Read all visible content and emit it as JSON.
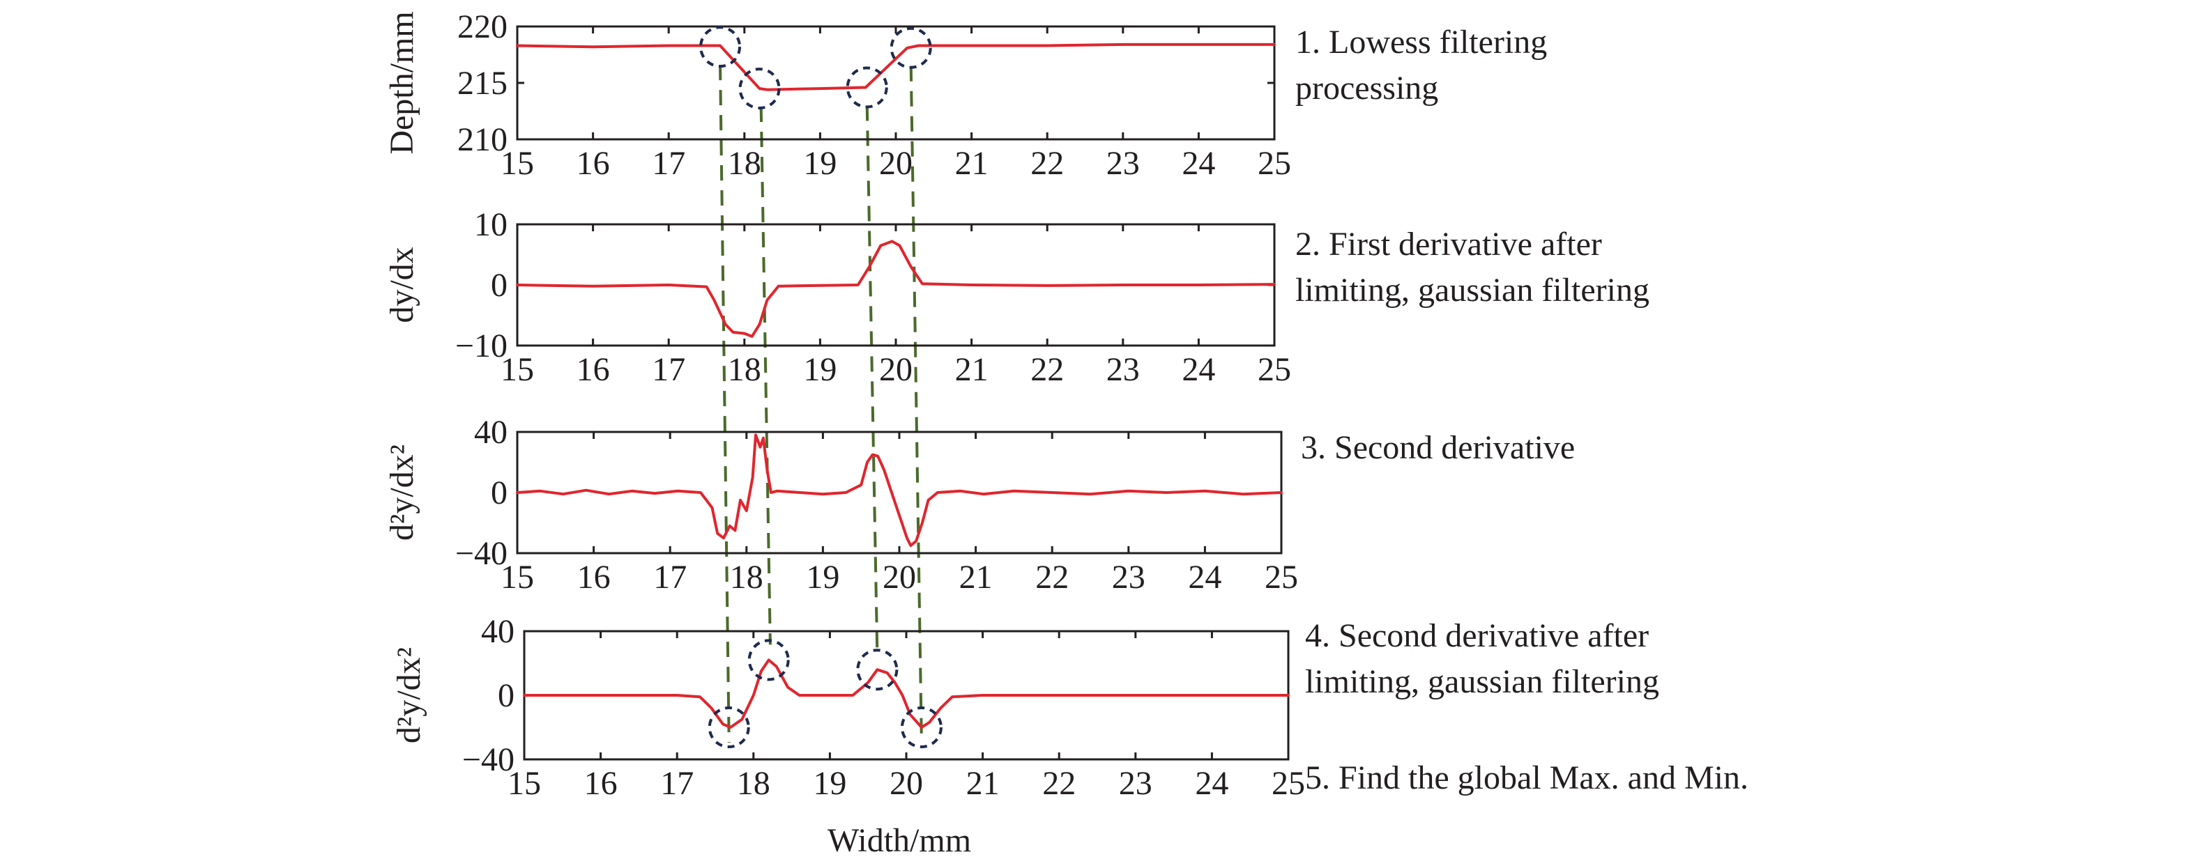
{
  "figure": {
    "xlabel": "Width/mm",
    "guide_x": [
      17.68,
      18.22,
      19.62,
      20.2
    ],
    "line_color": "#e0262e",
    "circle_color": "#1f2a4d",
    "guide_color": "#4a6a2a"
  },
  "chart_data": [
    {
      "type": "line",
      "panel": 1,
      "ylabel": "Depth/mm",
      "xlim": [
        15,
        25
      ],
      "ylim": [
        210,
        220
      ],
      "xticks": [
        "15",
        "16",
        "17",
        "18",
        "19",
        "20",
        "21",
        "22",
        "23",
        "24",
        "25"
      ],
      "yticks": [
        "210",
        "215",
        "220"
      ],
      "annotation": [
        "1. Lowess filtering",
        "processing"
      ],
      "x": [
        15,
        16,
        17,
        17.68,
        18.2,
        18.3,
        19,
        19.6,
        20.15,
        20.3,
        21,
        22,
        23,
        24,
        25
      ],
      "y": [
        218.3,
        218.2,
        218.3,
        218.3,
        214.5,
        214.4,
        214.5,
        214.6,
        218.1,
        218.3,
        218.3,
        218.3,
        218.4,
        218.4,
        218.4
      ],
      "circles": [
        [
          17.68,
          218.2
        ],
        [
          18.2,
          214.5
        ],
        [
          19.62,
          214.6
        ],
        [
          20.2,
          218.1
        ]
      ]
    },
    {
      "type": "line",
      "panel": 2,
      "ylabel": "dy/dx",
      "xlim": [
        15,
        25
      ],
      "ylim": [
        -10,
        10
      ],
      "xticks": [
        "15",
        "16",
        "17",
        "18",
        "19",
        "20",
        "21",
        "22",
        "23",
        "24",
        "25"
      ],
      "yticks": [
        "−10",
        "0",
        "10"
      ],
      "annotation": [
        "2. First derivative after",
        "limiting, gaussian filtering"
      ],
      "x": [
        15,
        16,
        17,
        17.5,
        17.6,
        17.75,
        17.85,
        18.0,
        18.1,
        18.2,
        18.3,
        18.45,
        19.5,
        19.65,
        19.8,
        19.95,
        20.05,
        20.2,
        20.35,
        21,
        22,
        23,
        24,
        25
      ],
      "y": [
        0,
        -0.2,
        0,
        -0.3,
        -2.5,
        -6.5,
        -7.8,
        -8.0,
        -8.5,
        -6.5,
        -2.5,
        -0.2,
        0,
        3.0,
        6.5,
        7.2,
        6.5,
        3.0,
        0.2,
        0,
        -0.1,
        0,
        0,
        0.1
      ],
      "circles": []
    },
    {
      "type": "line",
      "panel": 3,
      "ylabel": "d²y/dx²",
      "xlim": [
        15,
        25
      ],
      "ylim": [
        -40,
        40
      ],
      "xticks": [
        "15",
        "16",
        "17",
        "18",
        "19",
        "20",
        "21",
        "22",
        "23",
        "24",
        "25"
      ],
      "yticks": [
        "−40",
        "0",
        "40"
      ],
      "annotation": [
        "3. Second derivative"
      ],
      "x": [
        15,
        15.3,
        15.6,
        15.9,
        16.2,
        16.5,
        16.8,
        17.1,
        17.4,
        17.55,
        17.62,
        17.7,
        17.78,
        17.85,
        17.92,
        18.0,
        18.08,
        18.12,
        18.18,
        18.22,
        18.27,
        18.32,
        18.4,
        18.7,
        19.0,
        19.3,
        19.5,
        19.58,
        19.65,
        19.72,
        19.8,
        19.9,
        20.0,
        20.1,
        20.15,
        20.22,
        20.3,
        20.38,
        20.5,
        20.8,
        21.1,
        21.5,
        22,
        22.5,
        23,
        23.5,
        24,
        24.5,
        25
      ],
      "y": [
        0,
        1,
        -1,
        1.5,
        -1,
        1,
        -0.5,
        1,
        0,
        -10,
        -27,
        -30,
        -22,
        -25,
        -5,
        -12,
        10,
        38,
        30,
        36,
        15,
        0,
        1,
        0,
        -1,
        0,
        5,
        20,
        25,
        24,
        15,
        0,
        -15,
        -30,
        -35,
        -32,
        -20,
        -5,
        0,
        1,
        -1,
        1,
        0,
        -1,
        1,
        0,
        1,
        -1,
        0
      ],
      "circles": []
    },
    {
      "type": "line",
      "panel": 4,
      "ylabel": "d²y/dx²",
      "xlim": [
        15,
        25
      ],
      "ylim": [
        -40,
        40
      ],
      "xticks": [
        "15",
        "16",
        "17",
        "18",
        "19",
        "20",
        "21",
        "22",
        "23",
        "24",
        "25"
      ],
      "yticks": [
        "−40",
        "0",
        "40"
      ],
      "annotation": [
        "4. Second derivative after",
        "limiting, gaussian filtering",
        "5. Find the global Max. and Min."
      ],
      "x": [
        15,
        16,
        17,
        17.3,
        17.45,
        17.6,
        17.7,
        17.85,
        18.0,
        18.1,
        18.2,
        18.3,
        18.45,
        18.6,
        19.0,
        19.3,
        19.5,
        19.62,
        19.75,
        19.85,
        19.95,
        20.05,
        20.2,
        20.3,
        20.45,
        20.6,
        21,
        22,
        23,
        24,
        25
      ],
      "y": [
        0,
        0,
        0,
        -1,
        -8,
        -18,
        -20,
        -15,
        0,
        15,
        22,
        18,
        5,
        0,
        0,
        0,
        8,
        16,
        14,
        8,
        0,
        -12,
        -20,
        -17,
        -8,
        -1,
        0,
        0,
        0,
        0,
        0
      ],
      "circles": [
        [
          17.68,
          -20
        ],
        [
          18.2,
          22
        ],
        [
          19.62,
          16
        ],
        [
          20.2,
          -20
        ]
      ]
    }
  ]
}
